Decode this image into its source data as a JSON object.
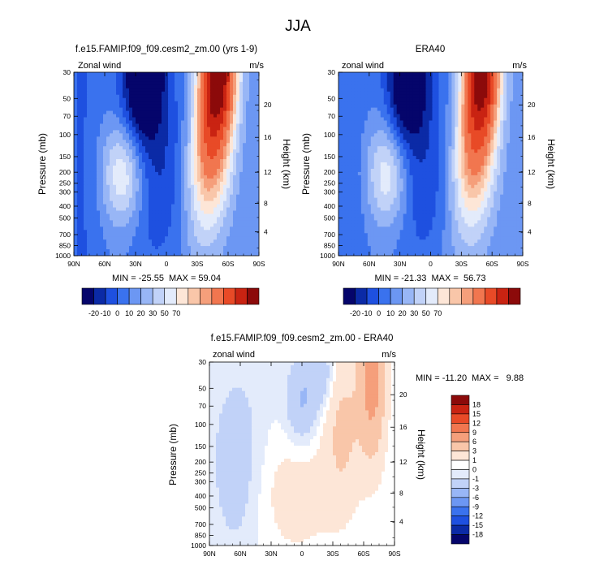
{
  "figure_title": "JJA",
  "chart_data": [
    {
      "type": "heatmap",
      "title": "f.e15.FAMIP.f09_f09.cesm2_zm.00 (yrs 1-9)",
      "left_label": "Zonal wind",
      "units_label": "m/s",
      "ylabel": "Pressure (mb)",
      "ylabel_right": "Height (km)",
      "x_ticks": [
        "90N",
        "60N",
        "30N",
        "0",
        "30S",
        "60S",
        "90S"
      ],
      "y_ticks": [
        "30",
        "50",
        "70",
        "100",
        "150",
        "200",
        "250",
        "300",
        "400",
        "500",
        "700",
        "850",
        "1000"
      ],
      "y_ticks_right": [
        "20",
        "16",
        "12",
        "8",
        "4"
      ],
      "stats_text": "MIN = -25.55  MAX = 59.04",
      "min": -25.55,
      "max": 59.04,
      "field": "full",
      "colorbar_labels": [
        "-20",
        "-10",
        "0",
        "10",
        "20",
        "30",
        "50",
        "70"
      ]
    },
    {
      "type": "heatmap",
      "title": "ERA40",
      "left_label": "zonal wind",
      "units_label": "m/s",
      "ylabel": "Pressure (mb)",
      "ylabel_right": "Height (km)",
      "x_ticks": [
        "90N",
        "60N",
        "30N",
        "0",
        "30S",
        "60S",
        "90S"
      ],
      "y_ticks": [
        "30",
        "50",
        "70",
        "100",
        "150",
        "200",
        "250",
        "300",
        "400",
        "500",
        "700",
        "850",
        "1000"
      ],
      "y_ticks_right": [
        "20",
        "16",
        "12",
        "8",
        "4"
      ],
      "stats_text": "MIN = -21.33  MAX =  56.73",
      "min": -21.33,
      "max": 56.73,
      "field": "full",
      "colorbar_labels": [
        "-20",
        "-10",
        "0",
        "10",
        "20",
        "30",
        "50",
        "70"
      ]
    },
    {
      "type": "heatmap",
      "title": "f.e15.FAMIP.f09_f09.cesm2_zm.00 - ERA40",
      "left_label": "zonal wind",
      "units_label": "m/s",
      "ylabel": "Pressure (mb)",
      "ylabel_right": "Height (km)",
      "x_ticks": [
        "90N",
        "60N",
        "30N",
        "0",
        "30S",
        "60S",
        "90S"
      ],
      "y_ticks": [
        "30",
        "50",
        "70",
        "100",
        "150",
        "200",
        "250",
        "300",
        "400",
        "500",
        "700",
        "850",
        "1000"
      ],
      "y_ticks_right": [
        "20",
        "16",
        "12",
        "8",
        "4"
      ],
      "stats_text": "MIN = -11.20  MAX =   9.88",
      "min": -11.2,
      "max": 9.88,
      "field": "diff",
      "colorbar_labels": [
        "18",
        "15",
        "12",
        "9",
        "6",
        "3",
        "1",
        "0",
        "-1",
        "-3",
        "-6",
        "-9",
        "-12",
        "-15",
        "-18"
      ]
    }
  ],
  "colors": {
    "full_palette": [
      "#05056b",
      "#0b2aa6",
      "#1e50e0",
      "#3a72ee",
      "#6c97f3",
      "#98b6f6",
      "#c1d2f8",
      "#e3ebfb",
      "#fde6d7",
      "#f9c6a9",
      "#f59f7b",
      "#f1764f",
      "#e84a27",
      "#c92312",
      "#8c0a0a"
    ],
    "diff_palette": [
      "#05056b",
      "#0b2aa6",
      "#1e50e0",
      "#3a72ee",
      "#6c97f3",
      "#98b6f6",
      "#c1d2f8",
      "#e3ebfb",
      "#ffffff",
      "#fde6d7",
      "#f9c6a9",
      "#f59f7b",
      "#f1764f",
      "#e84a27",
      "#c92312",
      "#8c0a0a"
    ]
  }
}
